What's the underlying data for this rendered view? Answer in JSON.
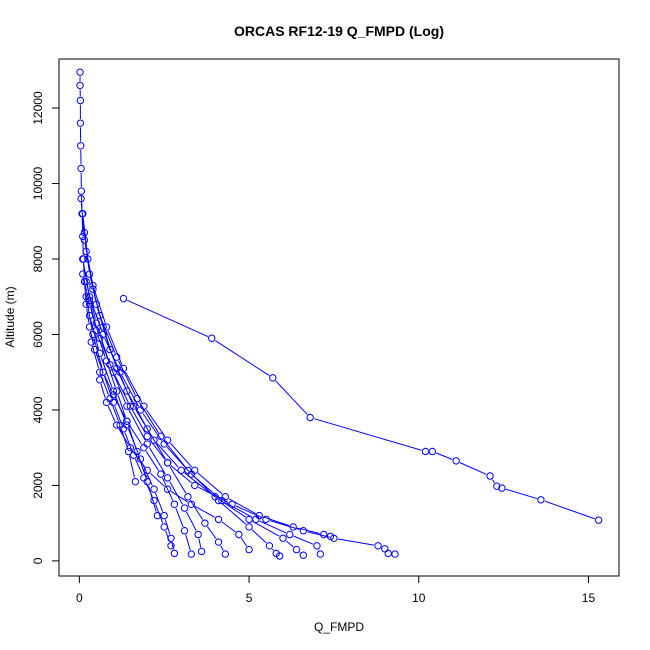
{
  "chart_data": {
    "type": "line",
    "title": "ORCAS RF12-19 Q_FMPD (Log)",
    "xlabel": "Q_FMPD",
    "ylabel": "Altitude (m)",
    "xlim": [
      -0.6,
      15.9
    ],
    "ylim": [
      -400,
      13300
    ],
    "xticks": [
      0,
      5,
      10,
      15
    ],
    "yticks": [
      0,
      2000,
      4000,
      6000,
      8000,
      10000,
      12000
    ],
    "grid": false,
    "legend": "none",
    "marker": "open-circle",
    "line_color": "#0000ff",
    "series": [
      {
        "x": [
          0.02,
          0.02,
          0.03,
          0.03,
          0.04,
          0.05,
          0.06,
          0.08,
          0.1,
          0.12,
          0.15,
          0.2,
          0.3,
          0.45,
          0.7,
          1.0,
          1.4,
          1.9,
          2.4,
          2.8,
          3.1,
          3.3
        ],
        "y": [
          12950,
          12600,
          12200,
          11600,
          11000,
          10400,
          9800,
          9200,
          8600,
          8000,
          7400,
          6800,
          6200,
          5600,
          5000,
          4400,
          3700,
          3000,
          2300,
          1500,
          800,
          180
        ]
      },
      {
        "x": [
          1.3,
          3.9,
          5.7,
          6.8,
          10.2,
          10.4,
          11.1,
          12.1,
          12.3,
          12.45,
          13.6,
          15.3
        ],
        "y": [
          6950,
          5900,
          4850,
          3800,
          2900,
          2900,
          2650,
          2250,
          1980,
          1930,
          1620,
          1080
        ]
      },
      {
        "x": [
          0.1,
          0.3,
          0.6,
          1.0,
          1.5,
          2.0,
          2.6,
          3.4,
          4.5,
          5.5,
          6.6,
          7.5,
          8.8,
          9.0,
          9.1,
          9.3
        ],
        "y": [
          7600,
          6800,
          5900,
          5000,
          4100,
          3300,
          2600,
          2000,
          1500,
          1100,
          800,
          600,
          400,
          320,
          200,
          180
        ]
      },
      {
        "x": [
          0.2,
          0.4,
          0.7,
          1.1,
          1.6,
          2.2,
          3.0,
          4.0,
          5.0,
          6.0,
          6.4,
          6.6
        ],
        "y": [
          8200,
          7200,
          6200,
          5100,
          4100,
          3200,
          2400,
          1700,
          1100,
          600,
          300,
          150
        ]
      },
      {
        "x": [
          0.1,
          0.25,
          0.5,
          0.9,
          1.4,
          2.0,
          2.6,
          3.2,
          3.7,
          4.1,
          4.3
        ],
        "y": [
          9200,
          8000,
          6800,
          5600,
          4500,
          3500,
          2600,
          1700,
          1000,
          500,
          180
        ]
      },
      {
        "x": [
          0.15,
          0.3,
          0.6,
          1.1,
          1.7,
          2.4,
          3.2,
          4.1,
          5.0,
          5.6,
          5.8,
          5.9
        ],
        "y": [
          8700,
          7600,
          6500,
          5400,
          4300,
          3300,
          2400,
          1600,
          900,
          400,
          200,
          130
        ]
      },
      {
        "x": [
          0.2,
          0.5,
          0.9,
          1.4,
          2.0,
          2.6,
          3.1,
          3.5,
          3.6
        ],
        "y": [
          7400,
          6300,
          5200,
          4100,
          3100,
          2200,
          1400,
          700,
          250
        ]
      },
      {
        "x": [
          0.3,
          0.6,
          1.0,
          1.4,
          1.8,
          2.2,
          2.5,
          2.7,
          2.8
        ],
        "y": [
          6500,
          5500,
          4500,
          3600,
          2700,
          1900,
          1200,
          600,
          200
        ]
      },
      {
        "x": [
          0.1,
          0.3,
          0.7,
          1.2,
          1.8,
          2.5,
          3.3,
          4.2,
          5.2,
          6.2,
          7.0,
          7.1
        ],
        "y": [
          8000,
          7000,
          6000,
          5000,
          4000,
          3100,
          2300,
          1600,
          1100,
          700,
          400,
          180
        ]
      },
      {
        "x": [
          0.05,
          0.15,
          0.4,
          0.8,
          1.3,
          1.9,
          2.6,
          3.4,
          4.3,
          5.3,
          6.3,
          7.2,
          7.4
        ],
        "y": [
          9600,
          8500,
          7300,
          6200,
          5100,
          4100,
          3200,
          2400,
          1700,
          1200,
          900,
          700,
          650
        ]
      },
      {
        "x": [
          0.3,
          0.5,
          0.8,
          1.1,
          1.4,
          1.7,
          2.0,
          2.3
        ],
        "y": [
          6900,
          6100,
          5300,
          4500,
          3700,
          2900,
          2100,
          1200
        ]
      },
      {
        "x": [
          0.2,
          0.4,
          0.7,
          1.0,
          1.3,
          1.6,
          1.9,
          2.2,
          2.5,
          2.7
        ],
        "y": [
          7000,
          6000,
          5000,
          4200,
          3500,
          2800,
          2200,
          1600,
          900,
          400
        ]
      },
      {
        "x": [
          0.35,
          0.6,
          0.9,
          1.2,
          1.45,
          1.65
        ],
        "y": [
          5800,
          5000,
          4300,
          3600,
          2900,
          2100
        ]
      },
      {
        "x": [
          0.6,
          0.8,
          1.1,
          1.5,
          2.0,
          2.6,
          3.3,
          4.1,
          4.7,
          5.0
        ],
        "y": [
          4800,
          4200,
          3600,
          3000,
          2400,
          1900,
          1500,
          1100,
          700,
          300
        ]
      }
    ]
  }
}
